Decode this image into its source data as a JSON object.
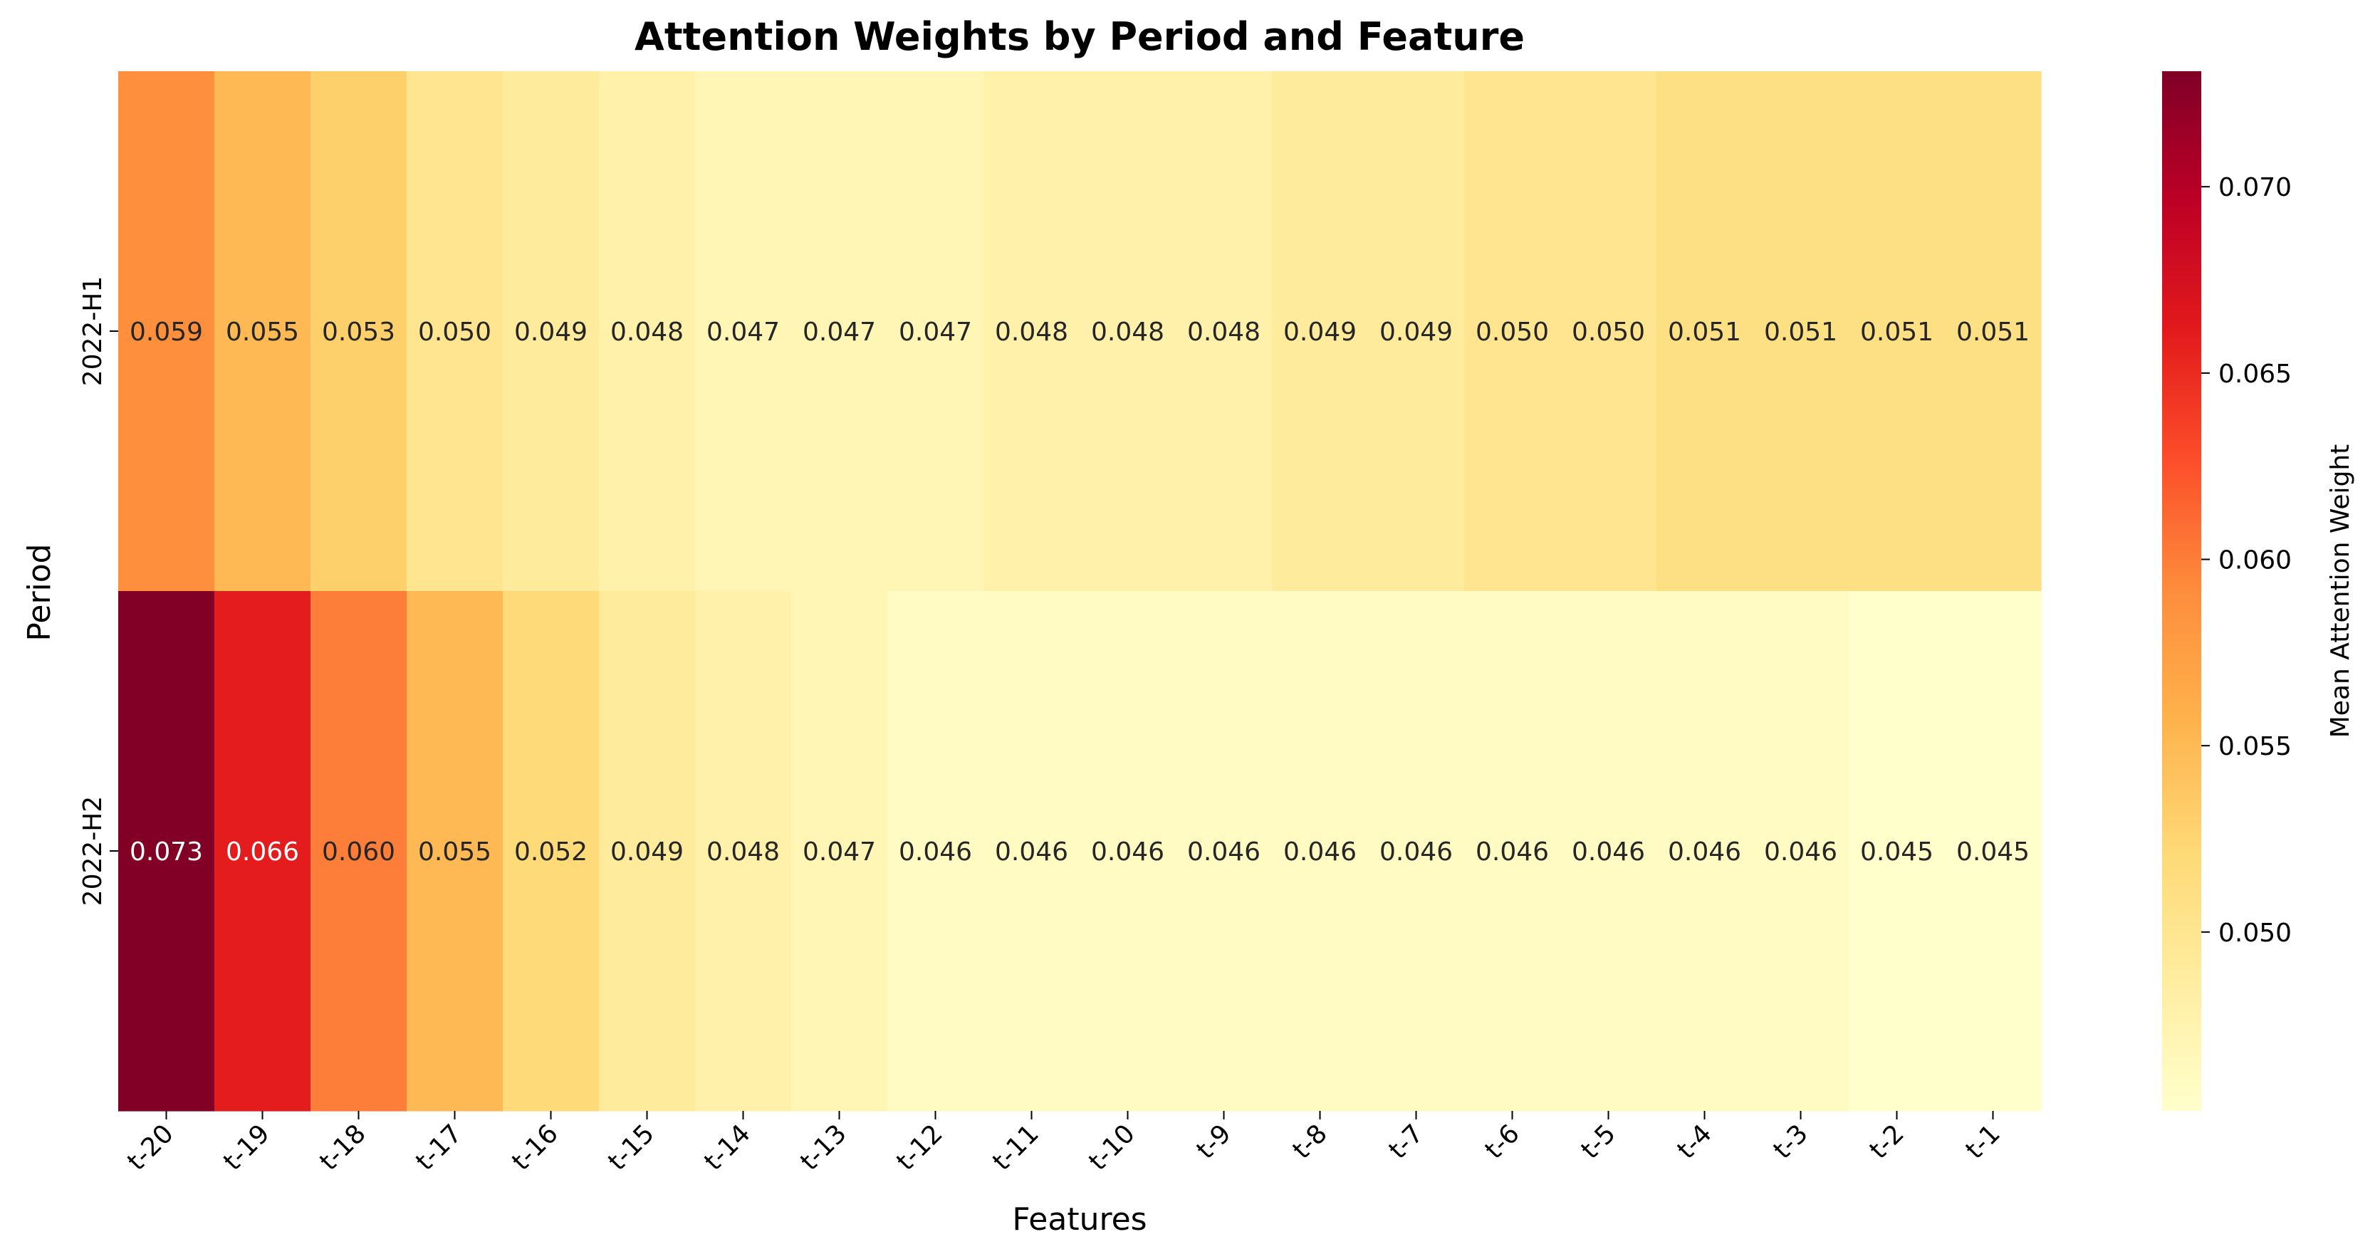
{
  "chart_data": {
    "type": "heatmap",
    "title": "Attention Weights by Period and Feature",
    "xlabel": "Features",
    "ylabel": "Period",
    "x_categories": [
      "t-20",
      "t-19",
      "t-18",
      "t-17",
      "t-16",
      "t-15",
      "t-14",
      "t-13",
      "t-12",
      "t-11",
      "t-10",
      "t-9",
      "t-8",
      "t-7",
      "t-6",
      "t-5",
      "t-4",
      "t-3",
      "t-2",
      "t-1"
    ],
    "y_categories": [
      "2022-H1",
      "2022-H2"
    ],
    "values": [
      [
        0.059,
        0.055,
        0.053,
        0.05,
        0.049,
        0.048,
        0.047,
        0.047,
        0.047,
        0.048,
        0.048,
        0.048,
        0.049,
        0.049,
        0.05,
        0.05,
        0.051,
        0.051,
        0.051,
        0.051
      ],
      [
        0.073,
        0.066,
        0.06,
        0.055,
        0.052,
        0.049,
        0.048,
        0.047,
        0.046,
        0.046,
        0.046,
        0.046,
        0.046,
        0.046,
        0.046,
        0.046,
        0.046,
        0.046,
        0.045,
        0.045
      ]
    ],
    "value_labels": [
      [
        "0.059",
        "0.055",
        "0.053",
        "0.050",
        "0.049",
        "0.048",
        "0.047",
        "0.047",
        "0.047",
        "0.048",
        "0.048",
        "0.048",
        "0.049",
        "0.049",
        "0.050",
        "0.050",
        "0.051",
        "0.051",
        "0.051",
        "0.051"
      ],
      [
        "0.073",
        "0.066",
        "0.060",
        "0.055",
        "0.052",
        "0.049",
        "0.048",
        "0.047",
        "0.046",
        "0.046",
        "0.046",
        "0.046",
        "0.046",
        "0.046",
        "0.046",
        "0.046",
        "0.046",
        "0.046",
        "0.045",
        "0.045"
      ]
    ],
    "colormap": "YlOrRd",
    "colormap_stops": [
      "#ffffcc",
      "#ffeda0",
      "#fed976",
      "#feb24c",
      "#fd8d3c",
      "#fc4e2a",
      "#e31a1c",
      "#bd0026",
      "#800026"
    ],
    "colorbar": {
      "label": "Mean Attention Weight",
      "range": [
        0.0452,
        0.0731
      ],
      "ticks": [
        "0.050",
        "0.055",
        "0.060",
        "0.065",
        "0.070"
      ]
    }
  }
}
